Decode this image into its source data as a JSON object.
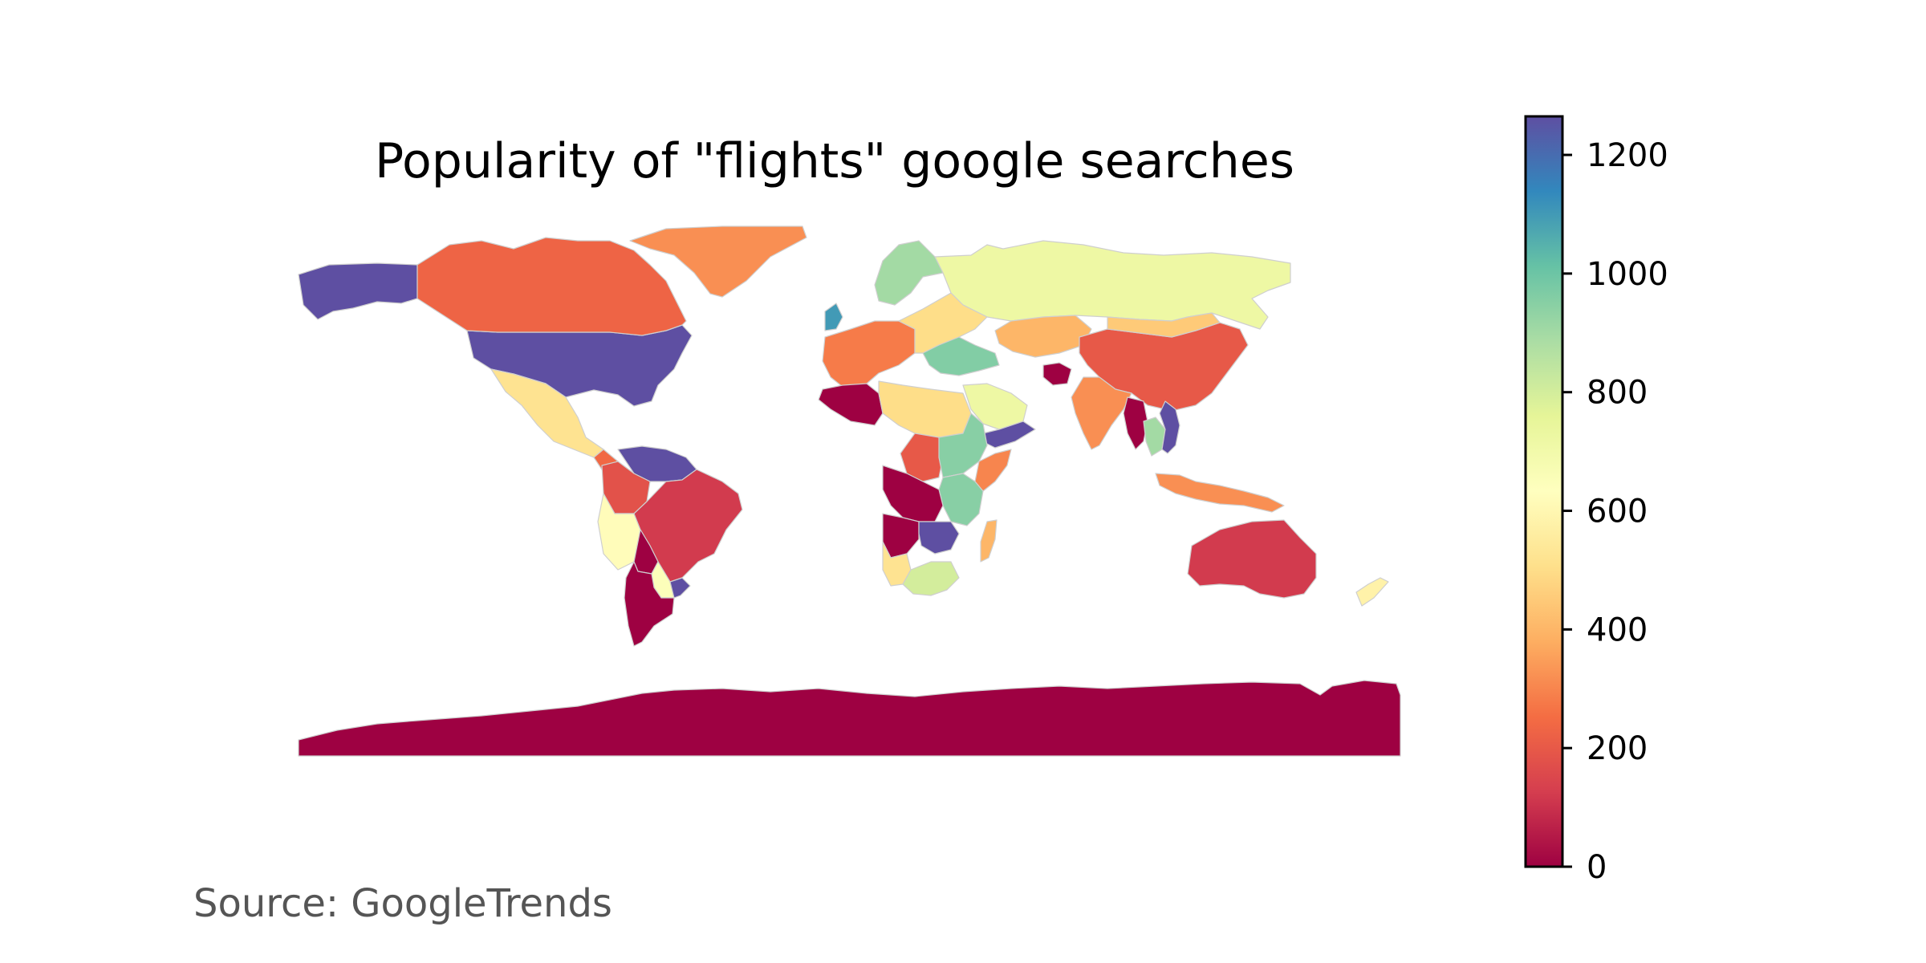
{
  "figure": {
    "title": "Popularity of \"flights\" google searches",
    "source": "Source: GoogleTrends"
  },
  "chart_data": {
    "type": "choropleth",
    "metric": "google search popularity for \"flights\"",
    "colormap": "Spectral",
    "colorbar": {
      "min": 0,
      "max": 1265,
      "ticks": [
        0,
        200,
        400,
        600,
        800,
        1000,
        1200
      ],
      "tick_labels": [
        "0",
        "200",
        "400",
        "600",
        "800",
        "1000",
        "1200"
      ]
    },
    "colors": {
      "c0": "#9e0142",
      "c1": "#d53e4f",
      "c2": "#f46d43",
      "c3": "#fdae61",
      "c4": "#fee08b",
      "c5": "#ffffbf",
      "c6": "#e6f598",
      "c7": "#abdda4",
      "c8": "#66c2a5",
      "c9": "#3288bd",
      "c10": "#5e4fa2",
      "no_data": "#d0d0d0"
    },
    "regions": [
      {
        "region": "Alaska (US)",
        "value": 1265
      },
      {
        "region": "United States",
        "value": 1265
      },
      {
        "region": "Canada",
        "value": 230
      },
      {
        "region": "Greenland",
        "value": 320
      },
      {
        "region": "Mexico",
        "value": 520
      },
      {
        "region": "Central America",
        "value": 240
      },
      {
        "region": "Venezuela / Guyana",
        "value": 1265
      },
      {
        "region": "Colombia",
        "value": 180
      },
      {
        "region": "Peru",
        "value": 620
      },
      {
        "region": "Brazil",
        "value": 120
      },
      {
        "region": "Bolivia",
        "value": 0
      },
      {
        "region": "Paraguay",
        "value": 650
      },
      {
        "region": "Uruguay",
        "value": 1265
      },
      {
        "region": "Chile / Argentina",
        "value": 0
      },
      {
        "region": "Russia",
        "value": 720
      },
      {
        "region": "Scandinavia",
        "value": 900
      },
      {
        "region": "United Kingdom",
        "value": 1100
      },
      {
        "region": "Western Europe",
        "value": 280
      },
      {
        "region": "Eastern Europe",
        "value": 500
      },
      {
        "region": "Turkey",
        "value": 960
      },
      {
        "region": "Kazakhstan",
        "value": 400
      },
      {
        "region": "China",
        "value": 200
      },
      {
        "region": "Mongolia",
        "value": 450
      },
      {
        "region": "India",
        "value": 320
      },
      {
        "region": "Afghanistan",
        "value": 0
      },
      {
        "region": "Saudi Arabia",
        "value": 720
      },
      {
        "region": "Yemen",
        "value": 1265
      },
      {
        "region": "Myanmar",
        "value": 0
      },
      {
        "region": "Thailand",
        "value": 900
      },
      {
        "region": "Vietnam",
        "value": 1265
      },
      {
        "region": "Indonesia",
        "value": 320
      },
      {
        "region": "Algeria",
        "value": 0
      },
      {
        "region": "Libya / Egypt",
        "value": 500
      },
      {
        "region": "Sudan",
        "value": 200
      },
      {
        "region": "Ethiopia",
        "value": 950
      },
      {
        "region": "Somalia",
        "value": 300
      },
      {
        "region": "Kenya / Tanzania",
        "value": 950
      },
      {
        "region": "DR Congo",
        "value": 0
      },
      {
        "region": "Angola",
        "value": 0
      },
      {
        "region": "Zambia / Malawi",
        "value": 1265
      },
      {
        "region": "Namibia",
        "value": 520
      },
      {
        "region": "South Africa",
        "value": 800
      },
      {
        "region": "Madagascar",
        "value": 400
      },
      {
        "region": "Australia",
        "value": 120
      },
      {
        "region": "New Zealand",
        "value": 580
      },
      {
        "region": "Antarctica",
        "value": 0
      }
    ]
  }
}
